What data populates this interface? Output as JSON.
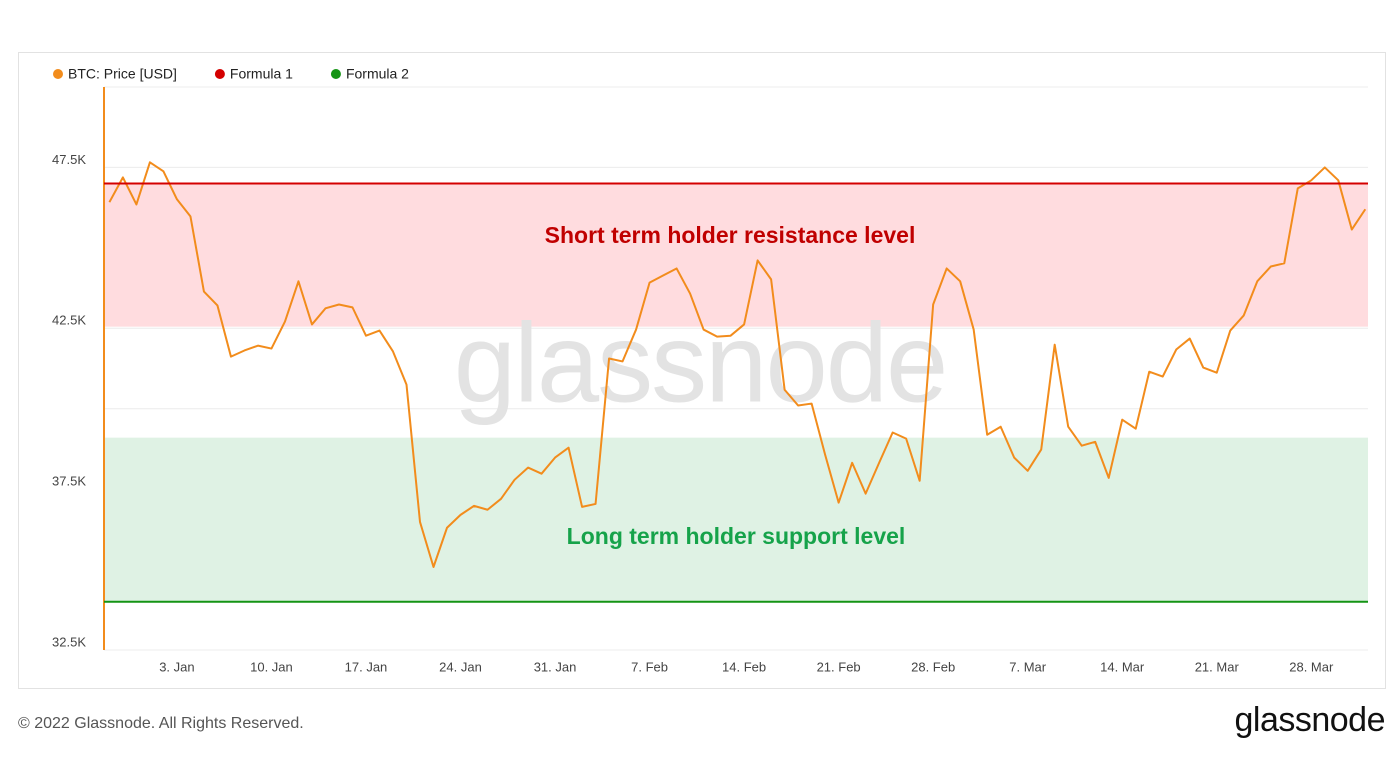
{
  "chart_data": {
    "type": "line",
    "watermark": "glassnode",
    "copyright": "© 2022 Glassnode. All Rights Reserved.",
    "logo": "glassnode",
    "xlim": [
      -2.4,
      91.2
    ],
    "xticks": [
      {
        "value": 3,
        "label": "3. Jan"
      },
      {
        "value": 10,
        "label": "10. Jan"
      },
      {
        "value": 17,
        "label": "17. Jan"
      },
      {
        "value": 24,
        "label": "24. Jan"
      },
      {
        "value": 31,
        "label": "31. Jan"
      },
      {
        "value": 38,
        "label": "7. Feb"
      },
      {
        "value": 45,
        "label": "14. Feb"
      },
      {
        "value": 52,
        "label": "21. Feb"
      },
      {
        "value": 59,
        "label": "28. Feb"
      },
      {
        "value": 66,
        "label": "7. Mar"
      },
      {
        "value": 73,
        "label": "14. Mar"
      },
      {
        "value": 80,
        "label": "21. Mar"
      },
      {
        "value": 87,
        "label": "28. Mar"
      }
    ],
    "ylim": [
      32500,
      50000
    ],
    "yticks": [
      {
        "value": 32500,
        "label": "32.5K"
      },
      {
        "value": 37500,
        "label": "37.5K"
      },
      {
        "value": 42500,
        "label": "42.5K"
      },
      {
        "value": 47500,
        "label": "47.5K"
      }
    ],
    "grid_values": [
      35000,
      40000,
      45000,
      50000
    ],
    "grid": true,
    "legend": "top-left",
    "series": [
      {
        "name": "BTC: Price [USD]",
        "color": "#f28c1c",
        "x": [
          -2,
          -1,
          0,
          1,
          2,
          3,
          4,
          5,
          6,
          7,
          8,
          9,
          10,
          11,
          12,
          13,
          14,
          15,
          16,
          17,
          18,
          19,
          20,
          21,
          22,
          23,
          24,
          25,
          26,
          27,
          28,
          29,
          30,
          31,
          32,
          33,
          34,
          35,
          36,
          37,
          38,
          39,
          40,
          41,
          42,
          43,
          44,
          45,
          46,
          47,
          48,
          49,
          50,
          51,
          52,
          53,
          54,
          55,
          56,
          57,
          58,
          59,
          60,
          61,
          62,
          63,
          64,
          65,
          66,
          67,
          68,
          69,
          70,
          71,
          72,
          73,
          74,
          75,
          76,
          77,
          78,
          79,
          80,
          81,
          82,
          83,
          84,
          85,
          86,
          87,
          88,
          89,
          90,
          91
        ],
        "values": [
          46420,
          47190,
          46350,
          47660,
          47380,
          46510,
          45980,
          43640,
          43210,
          41620,
          41810,
          41960,
          41870,
          42710,
          43960,
          42620,
          43120,
          43240,
          43150,
          42270,
          42430,
          41780,
          40750,
          36480,
          35080,
          36300,
          36700,
          36980,
          36860,
          37200,
          37790,
          38170,
          37980,
          38480,
          38790,
          36950,
          37040,
          41560,
          41470,
          42460,
          43920,
          44140,
          44360,
          43580,
          42460,
          42240,
          42270,
          42620,
          44610,
          44020,
          40590,
          40100,
          40160,
          38570,
          37080,
          38320,
          37360,
          38320,
          39260,
          39070,
          37760,
          43240,
          44360,
          43960,
          42460,
          39190,
          39440,
          38480,
          38070,
          38730,
          41990,
          39440,
          38850,
          38970,
          37850,
          39660,
          39380,
          41150,
          41000,
          41840,
          42180,
          41280,
          41120,
          42430,
          42900,
          43960,
          44420,
          44520,
          46850,
          47100,
          47500,
          47100,
          45570,
          46200
        ]
      },
      {
        "name": "Formula 1",
        "color": "#d40000",
        "level": 47000,
        "band_edge": 42550,
        "band_color": "#ffdcdf",
        "band_label": "Short term holder resistance level",
        "label_color": "#c00000"
      },
      {
        "name": "Formula 2",
        "color": "#149414",
        "level": 34000,
        "band_edge": 39100,
        "band_color": "#dff2e4",
        "band_label": "Long term holder support level",
        "label_color": "#16a34a"
      }
    ]
  }
}
